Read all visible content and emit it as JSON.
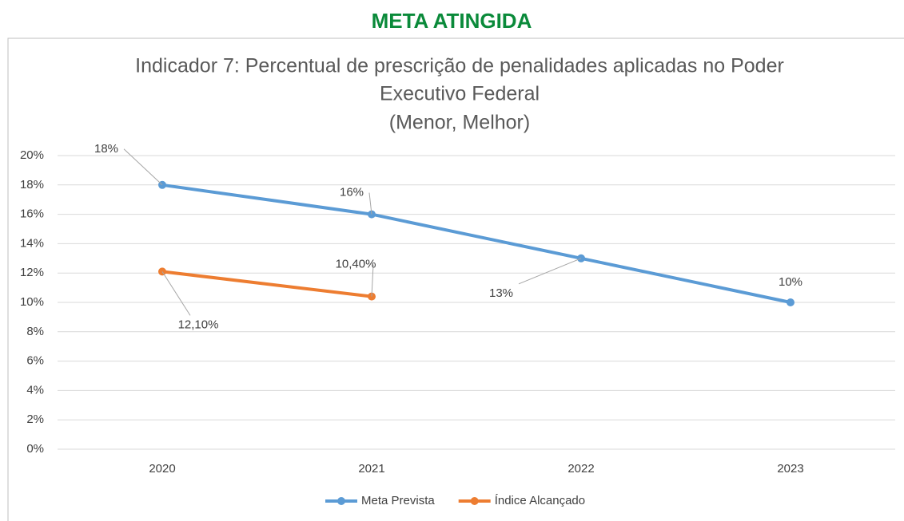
{
  "header": "META ATINGIDA",
  "chart_data": {
    "type": "line",
    "title": [
      "Indicador 7: Percentual de prescrição de penalidades aplicadas no Poder",
      "Executivo Federal",
      "(Menor, Melhor)"
    ],
    "categories": [
      "2020",
      "2021",
      "2022",
      "2023"
    ],
    "series": [
      {
        "name": "Meta Prevista",
        "color": "#5b9bd5",
        "values": [
          18,
          16,
          13,
          10
        ],
        "value_labels": [
          "18%",
          "16%",
          "13%",
          "10%"
        ]
      },
      {
        "name": "Índice Alcançado",
        "color": "#ed7d31",
        "values": [
          12.1,
          10.4,
          null,
          null
        ],
        "value_labels": [
          "12,10%",
          "10,40%",
          null,
          null
        ]
      }
    ],
    "ylim": [
      0,
      20
    ],
    "yticks": [
      {
        "value": 0,
        "label": "0%"
      },
      {
        "value": 2,
        "label": "2%"
      },
      {
        "value": 4,
        "label": "4%"
      },
      {
        "value": 6,
        "label": "6%"
      },
      {
        "value": 8,
        "label": "8%"
      },
      {
        "value": 10,
        "label": "10%"
      },
      {
        "value": 12,
        "label": "12%"
      },
      {
        "value": 14,
        "label": "14%"
      },
      {
        "value": 16,
        "label": "16%"
      },
      {
        "value": 18,
        "label": "18%"
      },
      {
        "value": 20,
        "label": "20%"
      }
    ],
    "grid": true,
    "legend": "bottom"
  }
}
